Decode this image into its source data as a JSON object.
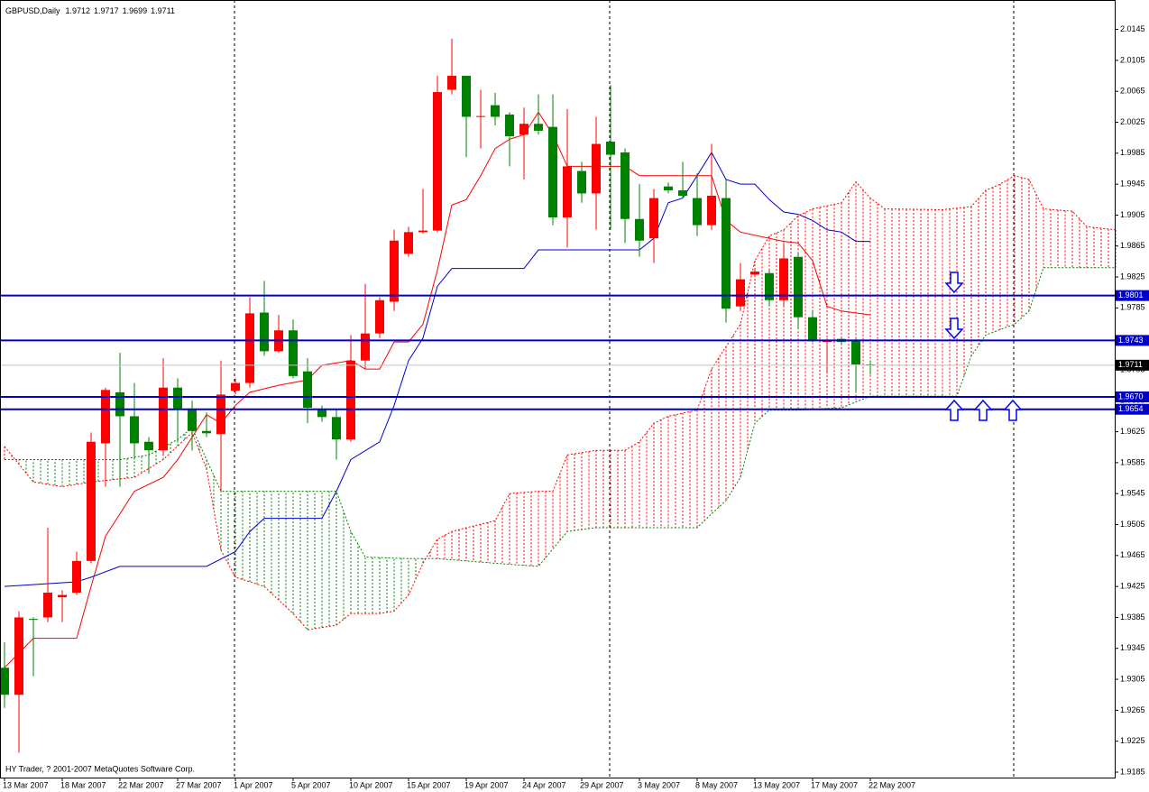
{
  "chart_data": {
    "type": "candlestick",
    "title": "GBPUSD,Daily",
    "footer": "HY Trader, ? 2001-2007 MetaQuotes Software Corp.",
    "categories": [
      "13 Mar 2007",
      null,
      null,
      null,
      "18 Mar 2007",
      null,
      null,
      null,
      "22 Mar 2007",
      null,
      null,
      null,
      "27 Mar 2007",
      null,
      null,
      null,
      "1 Apr 2007",
      null,
      null,
      null,
      "5 Apr 2007",
      null,
      null,
      null,
      "10 Apr 2007",
      null,
      null,
      null,
      "15 Apr 2007",
      null,
      null,
      null,
      "19 Apr 2007",
      null,
      null,
      null,
      "24 Apr 2007",
      null,
      null,
      null,
      "29 Apr 2007",
      null,
      null,
      null,
      "3 May 2007",
      null,
      null,
      null,
      "8 May 2007",
      null,
      null,
      null,
      "13 May 2007",
      null,
      null,
      null,
      "17 May 2007",
      null,
      null,
      null,
      "22 May 2007"
    ],
    "open": [
      1.932,
      1.9285,
      1.9383,
      1.9385,
      1.9411,
      1.9417,
      1.9458,
      1.961,
      1.9676,
      1.9645,
      1.9612,
      1.9601,
      1.9682,
      1.9655,
      1.9626,
      1.9622,
      1.9678,
      1.9688,
      1.9779,
      1.9729,
      1.9756,
      1.9703,
      1.9653,
      1.9644,
      1.9615,
      1.9717,
      1.9752,
      1.9793,
      1.9855,
      1.9883,
      1.9885,
      2.0067,
      2.0085,
      2.0032,
      2.0047,
      2.0035,
      2.0009,
      2.0023,
      2.0019,
      1.9902,
      1.9962,
      1.9933,
      2.0,
      1.9986,
      1.99,
      1.9875,
      1.9942,
      1.9937,
      1.9927,
      1.9892,
      1.9927,
      1.9787,
      1.9828,
      1.983,
      1.9795,
      1.9851,
      1.9773,
      1.9741,
      1.9745,
      1.9743,
      1.9712
    ],
    "high": [
      1.9353,
      1.9393,
      1.9385,
      1.9501,
      1.942,
      1.947,
      1.9624,
      1.9682,
      1.9727,
      1.9688,
      1.9618,
      1.972,
      1.9694,
      1.9665,
      1.965,
      1.9717,
      1.9694,
      1.9799,
      1.982,
      1.9776,
      1.977,
      1.972,
      1.9659,
      1.9653,
      1.975,
      1.9816,
      1.9799,
      1.9886,
      1.989,
      1.9939,
      2.0085,
      2.0133,
      2.0085,
      2.0067,
      2.0063,
      2.0038,
      2.0044,
      2.0061,
      2.0061,
      2.0042,
      1.9974,
      2.0032,
      2.0073,
      1.9991,
      1.9945,
      1.9939,
      1.9947,
      1.9974,
      1.9959,
      1.9997,
      1.9951,
      1.9843,
      1.9836,
      1.9834,
      1.9869,
      1.9857,
      1.9781,
      1.9746,
      1.9746,
      1.9746,
      1.9717
    ],
    "low": [
      1.9268,
      1.921,
      1.9309,
      1.9379,
      1.9379,
      1.9414,
      1.9455,
      1.9554,
      1.9554,
      1.9589,
      1.9571,
      1.9595,
      1.9612,
      1.9601,
      1.9618,
      1.9548,
      1.9673,
      1.9682,
      1.9723,
      1.9727,
      1.9694,
      1.9636,
      1.9638,
      1.9589,
      1.9612,
      1.9706,
      1.9746,
      1.9781,
      1.9851,
      1.9881,
      1.9883,
      2.0061,
      1.998,
      1.9991,
      2.0021,
      1.9968,
      1.9951,
      2.0009,
      1.9892,
      1.9863,
      1.9921,
      1.9886,
      1.9886,
      1.9869,
      1.9851,
      1.9843,
      1.9933,
      1.9927,
      1.9878,
      1.9886,
      1.9766,
      1.9781,
      1.9825,
      1.9787,
      1.9787,
      1.9758,
      1.9741,
      1.97,
      1.9738,
      1.9676,
      1.9699
    ],
    "close": [
      1.9285,
      1.9385,
      1.9382,
      1.9417,
      1.9414,
      1.9458,
      1.9612,
      1.9679,
      1.9645,
      1.961,
      1.9601,
      1.9682,
      1.9655,
      1.9626,
      1.9623,
      1.9673,
      1.9688,
      1.9778,
      1.9729,
      1.9756,
      1.9697,
      1.9656,
      1.9644,
      1.9615,
      1.9717,
      1.9752,
      1.9795,
      1.9872,
      1.9883,
      1.9885,
      2.0064,
      2.0085,
      2.0032,
      2.0033,
      2.0032,
      2.0007,
      2.0023,
      2.0014,
      1.9902,
      1.9968,
      1.9933,
      1.9997,
      1.9983,
      1.99,
      1.9872,
      1.9927,
      1.9937,
      1.993,
      1.9892,
      1.993,
      1.9784,
      1.9822,
      1.9832,
      1.9795,
      1.9849,
      1.9773,
      1.9743,
      1.9743,
      1.9741,
      1.9712,
      1.9711
    ],
    "bull_color": "#ff0000",
    "bear_color": "#008000",
    "ylim": [
      1.9178,
      2.0183
    ],
    "yticks": [
      2.0145,
      2.0105,
      2.0065,
      2.0025,
      1.9985,
      1.9945,
      1.9905,
      1.9865,
      1.9825,
      1.9785,
      1.9745,
      1.9705,
      1.9665,
      1.9625,
      1.9585,
      1.9545,
      1.9505,
      1.9465,
      1.9425,
      1.9385,
      1.9345,
      1.9305,
      1.9265,
      1.9225,
      1.9185
    ],
    "lines": [
      {
        "color": "#ff0000",
        "dash": false,
        "x": [
          0,
          2,
          5,
          6,
          7,
          8,
          9,
          11,
          12,
          13,
          14,
          15,
          16,
          17,
          19,
          21,
          22,
          24,
          25,
          26,
          27,
          28,
          29,
          30,
          31,
          32,
          33,
          34,
          35,
          36,
          37,
          38,
          39,
          43,
          44,
          49,
          50,
          51,
          54,
          55,
          56,
          57,
          58,
          60
        ],
        "values": [
          1.932,
          1.9358,
          1.9358,
          1.9425,
          1.949,
          1.9519,
          1.9548,
          1.9566,
          1.9589,
          1.9618,
          1.9647,
          1.9636,
          1.9659,
          1.9676,
          1.9685,
          1.9692,
          1.9711,
          1.9717,
          1.9706,
          1.9706,
          1.9741,
          1.9741,
          1.9764,
          1.9834,
          1.9918,
          1.9925,
          1.9956,
          1.9991,
          2.0003,
          2.0009,
          2.0038,
          2.0009,
          1.9968,
          1.9968,
          1.9956,
          1.9956,
          1.9898,
          1.9883,
          1.9871,
          1.9869,
          1.9846,
          1.9787,
          1.9781,
          1.9776
        ]
      },
      {
        "color": "#0000cc",
        "dash": false,
        "x": [
          0,
          5,
          6,
          8,
          14,
          16,
          17,
          18,
          22,
          23,
          24,
          26,
          27,
          28,
          29,
          30,
          31,
          36,
          37,
          44,
          45,
          46,
          47,
          48,
          49,
          50,
          51,
          52,
          53,
          54,
          55,
          56,
          57,
          58,
          59,
          60
        ],
        "values": [
          1.9425,
          1.9431,
          1.9437,
          1.9451,
          1.9451,
          1.947,
          1.9496,
          1.9513,
          1.9513,
          1.9548,
          1.9589,
          1.9612,
          1.9659,
          1.9717,
          1.9746,
          1.9813,
          1.9836,
          1.9836,
          1.986,
          1.986,
          1.9875,
          1.9921,
          1.9927,
          1.9956,
          1.9986,
          1.9951,
          1.9945,
          1.9945,
          1.9925,
          1.9909,
          1.9906,
          1.9898,
          1.9886,
          1.9883,
          1.9871,
          1.9871
        ]
      },
      {
        "color": "#ff0000",
        "dash": true,
        "x": [
          0,
          2,
          4,
          6,
          9,
          11,
          13,
          14,
          15,
          16,
          18,
          20,
          21,
          23,
          24,
          26,
          27,
          28,
          29,
          30,
          31,
          32,
          34,
          35,
          37,
          38,
          39,
          41,
          43,
          44,
          45,
          46,
          48,
          49,
          50,
          51,
          52,
          53,
          54,
          55,
          56,
          58,
          59,
          60,
          61,
          65,
          67,
          68,
          69,
          70,
          71,
          72,
          74,
          75,
          77
        ],
        "values": [
          1.9606,
          1.956,
          1.9554,
          1.956,
          1.9566,
          1.9589,
          1.9624,
          1.9577,
          1.9472,
          1.9437,
          1.9425,
          1.939,
          1.9369,
          1.9375,
          1.939,
          1.939,
          1.9393,
          1.9414,
          1.9455,
          1.9486,
          1.9496,
          1.9501,
          1.951,
          1.9545,
          1.9548,
          1.9548,
          1.9595,
          1.9601,
          1.9601,
          1.9612,
          1.9636,
          1.9645,
          1.9653,
          1.9706,
          1.9735,
          1.9764,
          1.9846,
          1.9878,
          1.9886,
          1.9904,
          1.9913,
          1.9921,
          1.9948,
          1.9927,
          1.9913,
          1.9912,
          1.9916,
          1.9937,
          1.9945,
          1.9956,
          1.9951,
          1.9913,
          1.991,
          1.989,
          1.9886
        ]
      },
      {
        "color": "#008000",
        "dash": true,
        "x": [
          0,
          8,
          10,
          12,
          13,
          14,
          15,
          23,
          24,
          25,
          28,
          30,
          32,
          34,
          37,
          39,
          41,
          48,
          49,
          50,
          51,
          52,
          53,
          55,
          58,
          60,
          66,
          67,
          68,
          70,
          71,
          72,
          77
        ],
        "values": [
          1.9589,
          1.9589,
          1.9595,
          1.9615,
          1.963,
          1.9589,
          1.9548,
          1.9548,
          1.9496,
          1.9463,
          1.9461,
          1.9461,
          1.9458,
          1.9455,
          1.9451,
          1.9496,
          1.9501,
          1.9501,
          1.9519,
          1.9536,
          1.9566,
          1.9636,
          1.9653,
          1.9653,
          1.9656,
          1.9671,
          1.9671,
          1.9723,
          1.975,
          1.9764,
          1.9781,
          1.9837,
          1.9837
        ]
      }
    ],
    "cloud": [
      2,
      3
    ],
    "levels": [
      1.9801,
      1.9743,
      {
        "value": 1.967,
        "label": "1.9670"
      },
      1.9654
    ],
    "level_color": "#0000cc",
    "last_price_color": "#c0c0c0"
  }
}
